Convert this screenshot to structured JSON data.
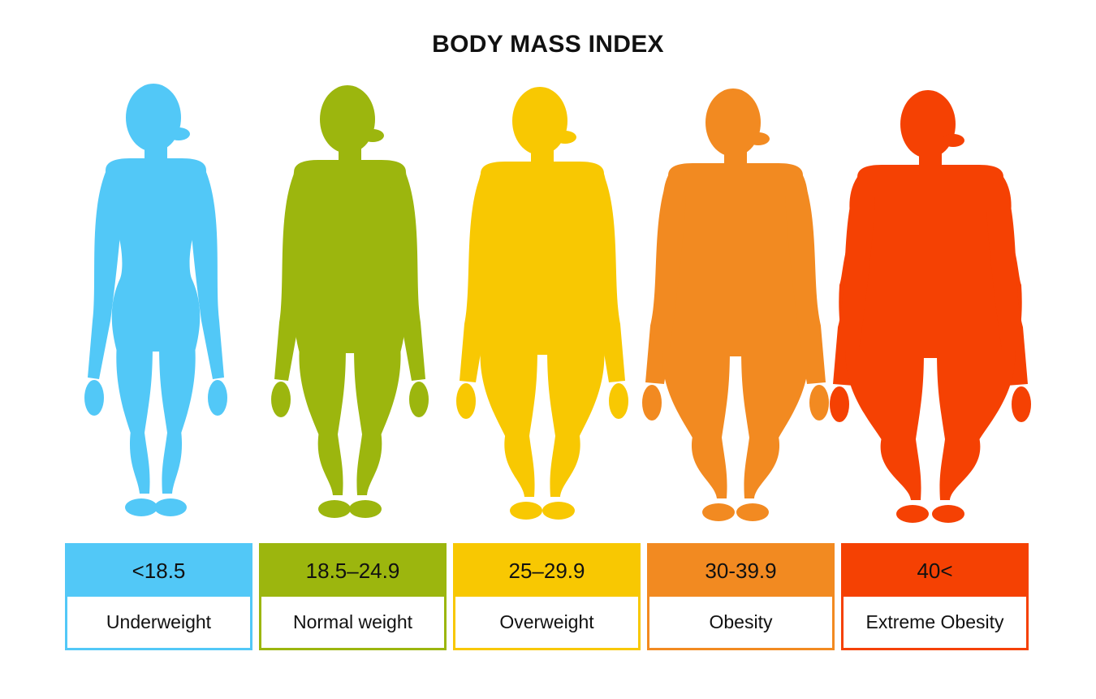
{
  "title": "BODY MASS INDEX",
  "categories": [
    {
      "range": "<18.5",
      "label": "Underweight",
      "color": "#52C8F7",
      "figure_icon": "underweight-female-silhouette-icon",
      "build": 0
    },
    {
      "range": "18.5–24.9",
      "label": "Normal weight",
      "color": "#9CB60E",
      "figure_icon": "normal-weight-female-silhouette-icon",
      "build": 1
    },
    {
      "range": "25–29.9",
      "label": "Overweight",
      "color": "#F8C802",
      "figure_icon": "overweight-female-silhouette-icon",
      "build": 2
    },
    {
      "range": "30-39.9",
      "label": "Obesity",
      "color": "#F28A21",
      "figure_icon": "obese-female-silhouette-icon",
      "build": 3
    },
    {
      "range": "40<",
      "label": "Extreme Obesity",
      "color": "#F54103",
      "figure_icon": "extremely-obese-female-silhouette-icon",
      "build": 4
    }
  ]
}
